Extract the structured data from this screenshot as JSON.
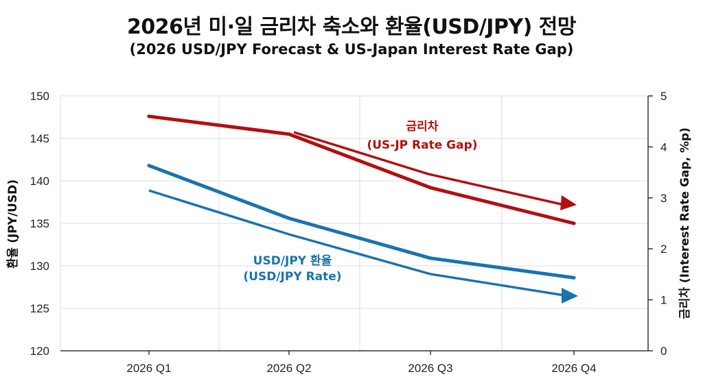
{
  "colors": {
    "rate_gap": "#b30f0f",
    "usdjpy": "#1a73b0",
    "grid": "#dcdcdc",
    "axis": "#333333"
  },
  "chart_data": {
    "type": "line",
    "title": "2026년 미·일 금리차 축소와 환율(USD/JPY) 전망",
    "subtitle": "(2026 USD/JPY Forecast & US-Japan Interest Rate Gap)",
    "categories": [
      "2026 Q1",
      "2026 Q2",
      "2026 Q3",
      "2026 Q4"
    ],
    "ylabel_left": "환율 (JPY/USD)",
    "ylabel_right": "금리차 (Interest Rate Gap, %p)",
    "ylim_left": [
      120,
      150
    ],
    "yticks_left": [
      120,
      125,
      130,
      135,
      140,
      145,
      150
    ],
    "ylim_right": [
      0,
      5
    ],
    "yticks_right": [
      0,
      1,
      2,
      3,
      4,
      5
    ],
    "grid": true,
    "series": [
      {
        "name": "금리차 (US-JP Rate Gap)",
        "axis": "right",
        "color": "#b30f0f",
        "values": [
          4.6,
          4.25,
          3.2,
          2.5
        ]
      },
      {
        "name": "USD/JPY 환율 (USD/JPY Rate)",
        "axis": "left",
        "color": "#1a73b0",
        "values": [
          141.8,
          135.6,
          130.9,
          128.6
        ]
      }
    ],
    "annotations": [
      {
        "series": 0,
        "line1": "금리차",
        "line2": "(US-JP Rate Gap)"
      },
      {
        "series": 1,
        "line1": "USD/JPY 환율",
        "line2": "(USD/JPY Rate)"
      }
    ]
  }
}
